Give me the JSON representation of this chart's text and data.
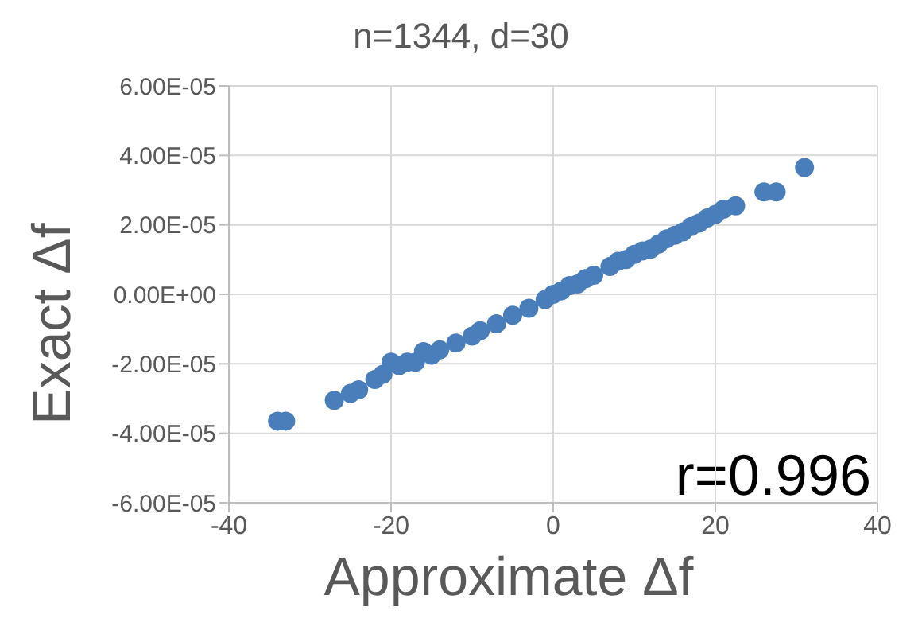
{
  "chart_data": {
    "type": "scatter",
    "title": "n=1344, d=30",
    "xlabel": "Approximate Δf",
    "ylabel": "Exact Δf",
    "annotations": [
      "r=0.996"
    ],
    "x": [
      -34,
      -33,
      -27,
      -25,
      -24,
      -22,
      -21,
      -20,
      -19,
      -18,
      -17,
      -16,
      -15,
      -14,
      -12,
      -10,
      -9,
      -7,
      -5,
      -3,
      -1,
      0,
      1,
      2,
      3,
      4,
      5,
      7,
      8,
      9,
      10,
      11,
      12,
      13,
      14,
      15,
      16,
      17,
      18,
      19,
      20,
      21,
      22.5,
      26,
      27.5,
      31
    ],
    "series": [
      {
        "color": "#4a7ebb",
        "values": [
          -3.65e-05,
          -3.65e-05,
          -3.05e-05,
          -2.85e-05,
          -2.75e-05,
          -2.45e-05,
          -2.3e-05,
          -1.95e-05,
          -2.05e-05,
          -1.95e-05,
          -1.95e-05,
          -1.65e-05,
          -1.75e-05,
          -1.6e-05,
          -1.4e-05,
          -1.2e-05,
          -1.05e-05,
          -8.5e-06,
          -6e-06,
          -4e-06,
          -1.5e-06,
          0,
          1e-06,
          2.5e-06,
          3e-06,
          4.5e-06,
          5.5e-06,
          8e-06,
          9.5e-06,
          1e-05,
          1.15e-05,
          1.25e-05,
          1.3e-05,
          1.45e-05,
          1.6e-05,
          1.7e-05,
          1.8e-05,
          1.95e-05,
          2.05e-05,
          2.2e-05,
          2.3e-05,
          2.45e-05,
          2.55e-05,
          2.95e-05,
          2.95e-05,
          3.65e-05
        ]
      }
    ],
    "xlim": [
      -40,
      40
    ],
    "xticks": [
      -40,
      -20,
      0,
      20,
      40
    ],
    "ylim": [
      -6e-05,
      6e-05
    ],
    "yticks": [
      {
        "value": -6e-05,
        "label": "-6.00E-05"
      },
      {
        "value": -4e-05,
        "label": "-4.00E-05"
      },
      {
        "value": -2e-05,
        "label": "-2.00E-05"
      },
      {
        "value": 0,
        "label": "0.00E+00"
      },
      {
        "value": 2e-05,
        "label": "2.00E-05"
      },
      {
        "value": 4e-05,
        "label": "4.00E-05"
      },
      {
        "value": 6e-05,
        "label": "6.00E-05"
      }
    ],
    "grid": true,
    "marker": "circle"
  }
}
